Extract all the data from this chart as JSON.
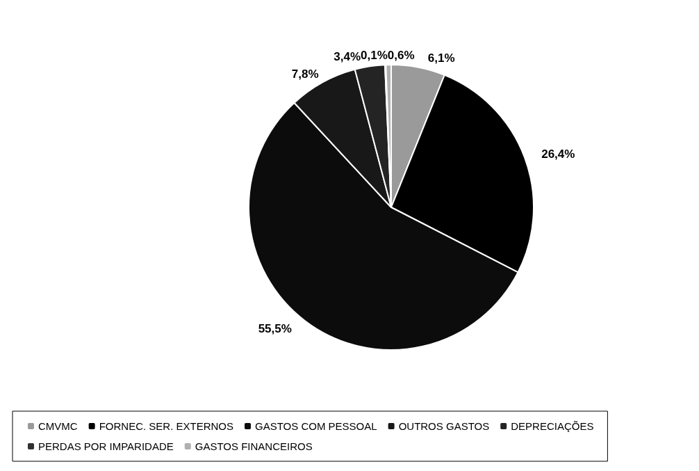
{
  "chart_data": {
    "type": "pie",
    "categories": [
      "CMVMC",
      "FORNEC. SER. EXTERNOS",
      "GASTOS COM PESSOAL",
      "OUTROS GASTOS",
      "DEPRECIAÇÕES",
      "PERDAS POR IMPARIDADE",
      "GASTOS FINANCEIROS"
    ],
    "values": [
      6.1,
      26.4,
      55.5,
      7.8,
      3.4,
      0.1,
      0.6
    ],
    "value_labels": [
      "6,1%",
      "26,4%",
      "55,5%",
      "7,8%",
      "3,4%",
      "0,1%",
      "0,6%"
    ],
    "colors": [
      "#9a9a9a",
      "#000000",
      "#0c0c0c",
      "#181818",
      "#242424",
      "#303030",
      "#b0b0b0"
    ],
    "legend": "bottom"
  }
}
